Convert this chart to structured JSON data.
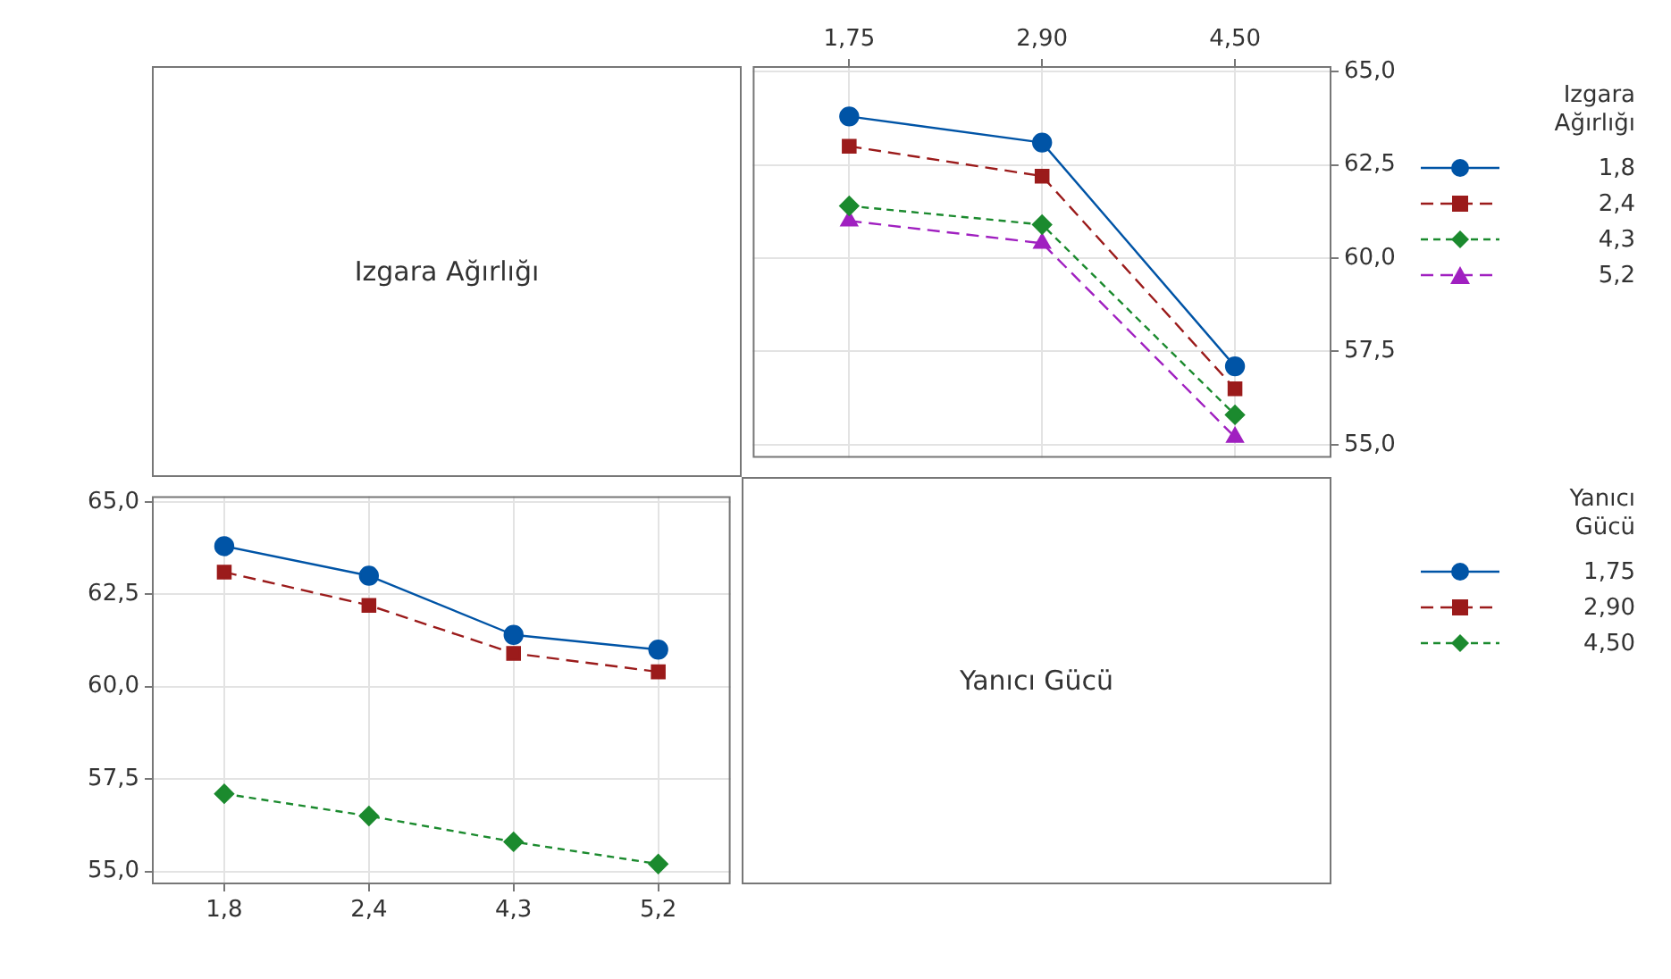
{
  "chart_data": [
    {
      "type": "other",
      "title": "Izgara Ağırlığı"
    },
    {
      "type": "line",
      "categories": [
        "1,75",
        "2,90",
        "4,50"
      ],
      "legend_title": "Izgara Ağırlığı",
      "legend": "right",
      "grid": true,
      "y2lim": [
        54.65,
        65.15
      ],
      "y2ticks": [
        {
          "value": 55,
          "label": "55,0"
        },
        {
          "value": 57.5,
          "label": "57,5"
        },
        {
          "value": 60,
          "label": "60,0"
        },
        {
          "value": 62.5,
          "label": "62,5"
        },
        {
          "value": 65,
          "label": "65,0"
        }
      ],
      "series": [
        {
          "name": "1,8",
          "color": "#0054a6",
          "marker": "circle",
          "line_style": "solid",
          "axis": "y2",
          "values": [
            63.8,
            63.1,
            57.1
          ]
        },
        {
          "name": "2,4",
          "color": "#9b1b1b",
          "marker": "square",
          "line_style": "dashed",
          "axis": "y2",
          "values": [
            63.0,
            62.2,
            56.5
          ]
        },
        {
          "name": "4,3",
          "color": "#1b8a2e",
          "marker": "diamond",
          "line_style": "dotted",
          "axis": "y2",
          "values": [
            61.4,
            60.9,
            55.8
          ]
        },
        {
          "name": "5,2",
          "color": "#a020c0",
          "marker": "triangle",
          "line_style": "dashed",
          "axis": "y2",
          "values": [
            61.0,
            60.4,
            55.2
          ]
        }
      ]
    },
    {
      "type": "line",
      "categories": [
        "1,8",
        "2,4",
        "4,3",
        "5,2"
      ],
      "legend_title": "Yanıcı Gücü",
      "legend": "right",
      "grid": true,
      "ylim": [
        54.65,
        65.15
      ],
      "yticks": [
        {
          "value": 55,
          "label": "55,0"
        },
        {
          "value": 57.5,
          "label": "57,5"
        },
        {
          "value": 60,
          "label": "60,0"
        },
        {
          "value": 62.5,
          "label": "62,5"
        },
        {
          "value": 65,
          "label": "65,0"
        }
      ],
      "series": [
        {
          "name": "1,75",
          "color": "#0054a6",
          "marker": "circle",
          "line_style": "solid",
          "values": [
            63.8,
            63.0,
            61.4,
            61.0
          ]
        },
        {
          "name": "2,90",
          "color": "#9b1b1b",
          "marker": "square",
          "line_style": "dashed",
          "values": [
            63.1,
            62.2,
            60.9,
            60.4
          ]
        },
        {
          "name": "4,50",
          "color": "#1b8a2e",
          "marker": "diamond",
          "line_style": "dotted",
          "values": [
            57.1,
            56.5,
            55.8,
            55.2
          ]
        }
      ]
    },
    {
      "type": "other",
      "title": "Yanıcı Gücü"
    }
  ]
}
